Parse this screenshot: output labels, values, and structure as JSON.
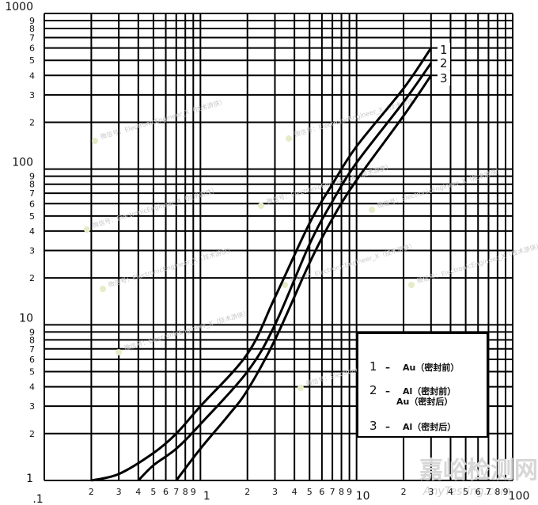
{
  "chart_data": {
    "type": "line",
    "title": "",
    "xlabel": "",
    "ylabel": "",
    "xscale": "log",
    "yscale": "log",
    "xlim": [
      0.1,
      100
    ],
    "ylim": [
      1,
      1000
    ],
    "grid": true,
    "x_decade_labels": [
      ".1",
      "1",
      "10",
      "100"
    ],
    "y_decade_labels": [
      "1",
      "10",
      "100",
      "1000"
    ],
    "minor_tick_labels": [
      "2",
      "3",
      "4",
      "5",
      "6",
      "7",
      "8",
      "9"
    ],
    "series": [
      {
        "name": "1",
        "label": "Au（密封前）",
        "x": [
          0.2,
          0.3,
          0.5,
          0.7,
          1,
          2,
          3,
          5,
          7,
          10,
          20,
          30
        ],
        "y": [
          1,
          1.1,
          1.5,
          2,
          3,
          6.5,
          15,
          45,
          80,
          140,
          330,
          600
        ]
      },
      {
        "name": "2",
        "label": "Al（密封前） Au（密封后）",
        "x": [
          0.4,
          0.5,
          0.7,
          1,
          2,
          3,
          5,
          7,
          10,
          20,
          30
        ],
        "y": [
          1,
          1.25,
          1.6,
          2.3,
          5,
          10,
          33,
          62,
          110,
          270,
          480
        ]
      },
      {
        "name": "3",
        "label": "Al（密封后）",
        "x": [
          0.7,
          1,
          1.5,
          2,
          3,
          5,
          7,
          10,
          20,
          30
        ],
        "y": [
          1,
          1.6,
          2.6,
          3.8,
          8,
          25,
          48,
          85,
          220,
          400
        ]
      }
    ],
    "legend_position": "lower right inside plot",
    "annotations": [
      "1",
      "2",
      "3"
    ]
  },
  "legend": {
    "items": [
      {
        "num": "1",
        "dash": "–",
        "line1": "Au（密封前）",
        "line2": ""
      },
      {
        "num": "2",
        "dash": "–",
        "line1": "Al（密封前）",
        "line2": "Au（密封后）"
      },
      {
        "num": "3",
        "dash": "–",
        "line1": "Al（密封后）",
        "line2": ""
      }
    ]
  },
  "curve_labels": [
    "1",
    "2",
    "3"
  ],
  "watermarks": {
    "text": "微信号：ElectronicEngineer_X（技术游侠）",
    "site_cn": "嘉峪检测网",
    "site_en": "AnyTesting.com"
  }
}
